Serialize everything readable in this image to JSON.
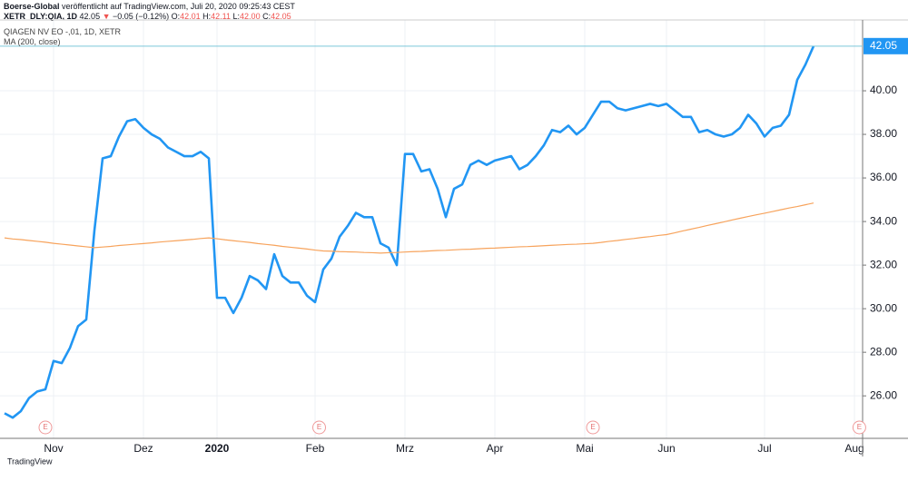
{
  "header": {
    "publisher": "Boerse-Global",
    "published": "veröffentlicht auf TradingView.com, Juli 20, 2020 09:25:43 CEST",
    "symbol": "XETR_DLY:QIA, 1D",
    "last": "42.05",
    "arrow": "▼",
    "change": "−0.05 (−0.12%)",
    "ohlc": [
      {
        "label": "O:",
        "value": "42.01"
      },
      {
        "label": "H:",
        "value": "42.11"
      },
      {
        "label": "L:",
        "value": "42.00"
      },
      {
        "label": "C:",
        "value": "42.05"
      }
    ]
  },
  "footer": {
    "brand": "TradingView"
  },
  "chart_data": {
    "type": "line",
    "event_marker": "E",
    "categories": [
      null,
      null,
      null,
      null,
      null,
      null,
      "Nov",
      null,
      null,
      null,
      null,
      null,
      null,
      null,
      null,
      null,
      null,
      "Dez",
      null,
      null,
      null,
      null,
      null,
      null,
      null,
      null,
      "2020",
      null,
      null,
      null,
      null,
      null,
      null,
      null,
      null,
      null,
      null,
      null,
      "Feb",
      null,
      null,
      null,
      null,
      null,
      null,
      null,
      null,
      null,
      null,
      "Mrz",
      null,
      null,
      null,
      null,
      null,
      null,
      null,
      null,
      null,
      null,
      "Apr",
      null,
      null,
      null,
      null,
      null,
      null,
      null,
      null,
      null,
      null,
      "Mai",
      null,
      null,
      null,
      null,
      null,
      null,
      null,
      null,
      null,
      "Jun",
      null,
      null,
      null,
      null,
      null,
      null,
      null,
      null,
      null,
      null,
      null,
      "Jul",
      null,
      null,
      null,
      null,
      null,
      null,
      null,
      null,
      null,
      null,
      "Aug"
    ],
    "series": [
      {
        "name": "QIAGEN NV EO -,01, 1D, XETR",
        "color": "#2196f3",
        "values": [
          25.2,
          25.0,
          25.3,
          25.9,
          26.2,
          26.3,
          27.6,
          27.5,
          28.2,
          29.2,
          29.5,
          33.6,
          36.9,
          37.0,
          37.9,
          38.6,
          38.7,
          38.3,
          38.0,
          37.8,
          37.4,
          37.2,
          37.0,
          37.0,
          37.2,
          36.9,
          30.5,
          30.5,
          29.8,
          30.5,
          31.5,
          31.3,
          30.9,
          32.5,
          31.5,
          31.2,
          31.2,
          30.6,
          30.3,
          31.8,
          32.3,
          33.3,
          33.8,
          34.4,
          34.2,
          34.2,
          33.0,
          32.8,
          32.0,
          37.1,
          37.1,
          36.3,
          36.4,
          35.5,
          34.2,
          35.5,
          35.7,
          36.6,
          36.8,
          36.6,
          36.8,
          36.9,
          37.0,
          36.4,
          36.6,
          37.0,
          37.5,
          38.2,
          38.1,
          38.4,
          38.0,
          38.3,
          38.9,
          39.5,
          39.5,
          39.2,
          39.1,
          39.2,
          39.3,
          39.4,
          39.3,
          39.4,
          39.1,
          38.8,
          38.8,
          38.1,
          38.2,
          38.0,
          37.9,
          38.0,
          38.3,
          38.9,
          38.5,
          37.9,
          38.3,
          38.4,
          38.9,
          40.5,
          41.2,
          42.05,
          null,
          null,
          null,
          null,
          null
        ]
      },
      {
        "name": "MA (200, close)",
        "color": "#f7a35c",
        "values": [
          33.25,
          33.2,
          33.17,
          33.13,
          33.09,
          33.05,
          33.0,
          32.96,
          32.92,
          32.88,
          32.84,
          32.8,
          32.83,
          32.86,
          32.9,
          32.93,
          32.96,
          32.99,
          33.02,
          33.06,
          33.09,
          33.12,
          33.15,
          33.18,
          33.22,
          33.25,
          33.21,
          33.16,
          33.12,
          33.08,
          33.04,
          32.99,
          32.95,
          32.91,
          32.86,
          32.82,
          32.78,
          32.74,
          32.69,
          32.65,
          32.64,
          32.62,
          32.61,
          32.6,
          32.58,
          32.57,
          32.55,
          32.57,
          32.58,
          32.6,
          32.62,
          32.63,
          32.65,
          32.67,
          32.68,
          32.7,
          32.72,
          32.73,
          32.75,
          32.77,
          32.78,
          32.8,
          32.82,
          32.84,
          32.85,
          32.87,
          32.89,
          32.91,
          32.93,
          32.95,
          32.96,
          32.98,
          33.0,
          33.04,
          33.09,
          33.13,
          33.18,
          33.22,
          33.27,
          33.31,
          33.36,
          33.4,
          33.48,
          33.57,
          33.65,
          33.73,
          33.82,
          33.9,
          33.98,
          34.07,
          34.15,
          34.23,
          34.31,
          34.38,
          34.46,
          34.54,
          34.62,
          34.69,
          34.77,
          34.85,
          null,
          null,
          null,
          null,
          null
        ]
      }
    ],
    "last_price_label": "42.05",
    "ylim": [
      24.05,
      43.25
    ],
    "yticks": [
      {
        "value": 26,
        "label": "26.00"
      },
      {
        "value": 28,
        "label": "28.00"
      },
      {
        "value": 30,
        "label": "30.00"
      },
      {
        "value": 32,
        "label": "32.00"
      },
      {
        "value": 34,
        "label": "34.00"
      },
      {
        "value": 36,
        "label": "36.00"
      },
      {
        "value": 38,
        "label": "38.00"
      },
      {
        "value": 40,
        "label": "40.00"
      }
    ],
    "grid": true
  }
}
